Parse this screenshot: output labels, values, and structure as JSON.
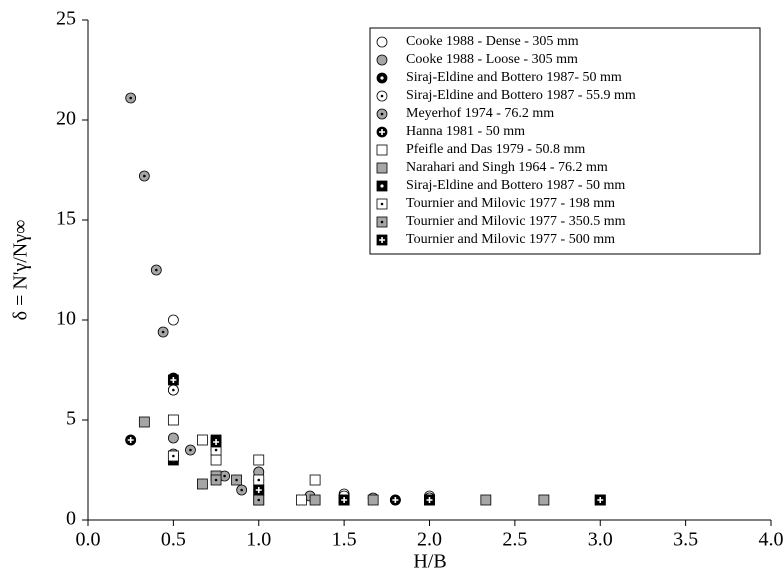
{
  "chart_data": {
    "type": "scatter",
    "xlabel": "H/B",
    "ylabel": "δ = N'γ/Nγ∞",
    "xlim": [
      0,
      4
    ],
    "ylim": [
      0,
      25
    ],
    "xticks": [
      {
        "value": 0,
        "label": "0.0"
      },
      {
        "value": 0.5,
        "label": "0.5"
      },
      {
        "value": 1,
        "label": "1.0"
      },
      {
        "value": 1.5,
        "label": "1.5"
      },
      {
        "value": 2,
        "label": "2.0"
      },
      {
        "value": 2.5,
        "label": "2.5"
      },
      {
        "value": 3,
        "label": "3.0"
      },
      {
        "value": 3.5,
        "label": "3.5"
      },
      {
        "value": 4,
        "label": "4.0"
      }
    ],
    "yticks": [
      0,
      5,
      10,
      15,
      20,
      25
    ],
    "legend": "upper right",
    "series": [
      {
        "name": "Cooke 1988 - Dense - 305 mm",
        "marker": "circle",
        "center": "none",
        "color": "#ffffff",
        "x": [
          0.5,
          0.5,
          1.0,
          1.5,
          1.8,
          2.0
        ],
        "values": [
          10,
          6.5,
          2.4,
          1.3,
          1.0,
          1.2
        ]
      },
      {
        "name": "Cooke 1988 - Loose - 305 mm",
        "marker": "circle",
        "center": "none",
        "color": "#a6a6a6",
        "x": [
          0.5,
          0.5,
          1.0,
          1.3,
          1.67,
          2.0
        ],
        "values": [
          4.1,
          3.3,
          2.4,
          1.2,
          1.1,
          1.1
        ]
      },
      {
        "name": "Siraj-Eldine and Bottero 1987- 50 mm",
        "marker": "circle",
        "center": "dot-white",
        "color": "#000000",
        "x": [
          0.25,
          0.5,
          0.75,
          1.0,
          1.5,
          1.8,
          2.0
        ],
        "values": [
          4.0,
          7.0,
          3.9,
          1.5,
          1.1,
          1.0,
          1.0
        ]
      },
      {
        "name": "Siraj-Eldine and Bottero 1987 - 55.9 mm",
        "marker": "circle",
        "center": "dot",
        "color": "#ffffff",
        "x": [
          0.5,
          0.75,
          1.0,
          1.5,
          2.0
        ],
        "values": [
          6.5,
          3.5,
          2.0,
          1.2,
          1.1
        ]
      },
      {
        "name": "Meyerhof 1974 - 76.2 mm",
        "marker": "circle",
        "center": "dot",
        "color": "#a6a6a6",
        "x": [
          0.25,
          0.33,
          0.4,
          0.44,
          0.6,
          0.8,
          0.9
        ],
        "values": [
          21.1,
          17.2,
          12.5,
          9.4,
          3.5,
          2.2,
          1.5
        ]
      },
      {
        "name": "Hanna 1981 - 50 mm",
        "marker": "circle",
        "center": "cross",
        "color": "#000000",
        "x": [
          0.25,
          0.5,
          1.0,
          1.5,
          1.8,
          2.0,
          3.0
        ],
        "values": [
          4.0,
          7.1,
          1.4,
          1.0,
          1.0,
          1.0,
          1.0
        ]
      },
      {
        "name": "Pfeifle and Das 1979 - 50.8 mm",
        "marker": "square",
        "center": "none",
        "color": "#ffffff",
        "x": [
          0.5,
          0.67,
          0.75,
          1.0,
          1.25,
          1.33
        ],
        "values": [
          5.0,
          4.0,
          3.0,
          3.0,
          1.0,
          2.0
        ]
      },
      {
        "name": "Narahari and Singh 1964 - 76.2 mm",
        "marker": "square",
        "center": "none",
        "color": "#a6a6a6",
        "x": [
          0.33,
          0.67,
          0.75,
          1.0,
          1.33,
          1.67,
          2.0,
          2.33,
          2.67,
          3.0
        ],
        "values": [
          4.9,
          1.8,
          2.2,
          1.0,
          1.0,
          1.0,
          1.0,
          1.0,
          1.0,
          1.0
        ]
      },
      {
        "name": "Siraj-Eldine and Bottero 1987 - 50 mm",
        "marker": "square",
        "center": "dot-white",
        "color": "#000000",
        "x": [
          0.5,
          0.75,
          1.0
        ],
        "values": [
          3.0,
          4.0,
          1.5
        ]
      },
      {
        "name": "Tournier and Milovic 1977 - 198 mm",
        "marker": "square",
        "center": "dot",
        "color": "#ffffff",
        "x": [
          0.5,
          0.75,
          1.0,
          1.5,
          2.0,
          3.0
        ],
        "values": [
          3.2,
          3.5,
          2.0,
          1.0,
          1.0,
          1.0
        ]
      },
      {
        "name": "Tournier and Milovic 1977 - 350.5 mm",
        "marker": "square",
        "center": "dot",
        "color": "#a6a6a6",
        "x": [
          0.75,
          0.87,
          1.0,
          1.5
        ],
        "values": [
          2.0,
          2.0,
          1.0,
          1.0
        ]
      },
      {
        "name": "Tournier and Milovic 1977 - 500 mm",
        "marker": "square",
        "center": "cross",
        "color": "#000000",
        "x": [
          0.5,
          0.75,
          1.0,
          1.5,
          2.0,
          3.0
        ],
        "values": [
          7.0,
          3.9,
          1.5,
          1.0,
          1.0,
          1.0
        ]
      }
    ]
  }
}
